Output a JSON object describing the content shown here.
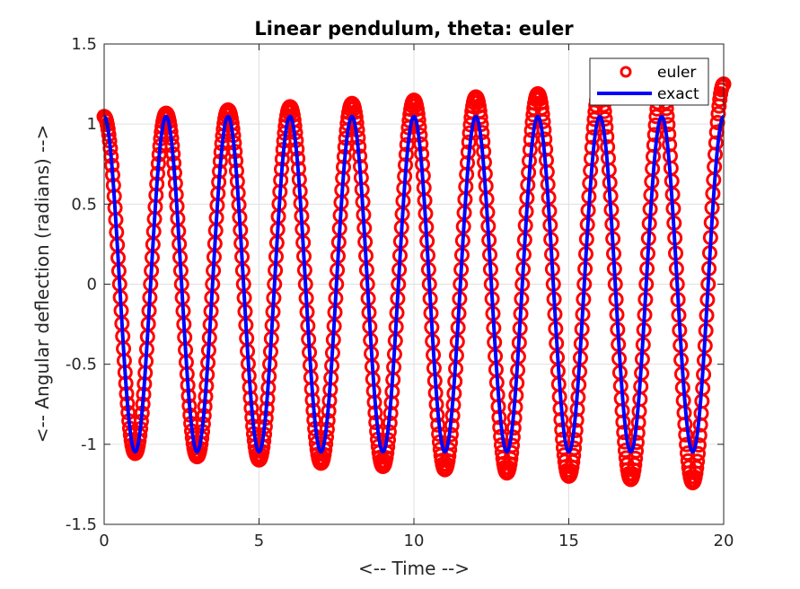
{
  "chart_data": {
    "type": "line",
    "title": "Linear pendulum, theta: euler",
    "xlabel": "<-- Time -->",
    "ylabel": "<-- Angular deflection (radians) -->",
    "xlim": [
      0,
      20
    ],
    "ylim": [
      -1.5,
      1.5
    ],
    "xticks": [
      "0",
      "5",
      "10",
      "15",
      "20"
    ],
    "yticks": [
      "1.5",
      "1",
      "0.5",
      "0",
      "-0.5",
      "-1",
      "-1.5"
    ],
    "grid": true,
    "legend_position": "top-right",
    "series": [
      {
        "name": "euler",
        "style": "circle-markers",
        "color": "#ff0000",
        "amplitude_start": 1.047,
        "amplitude_end": 1.25,
        "period": 2.0,
        "t_start": 0,
        "t_end": 20
      },
      {
        "name": "exact",
        "style": "line",
        "color": "#0000ff",
        "amplitude_start": 1.047,
        "amplitude_end": 1.047,
        "period": 2.0,
        "t_start": 0,
        "t_end": 20
      }
    ]
  }
}
